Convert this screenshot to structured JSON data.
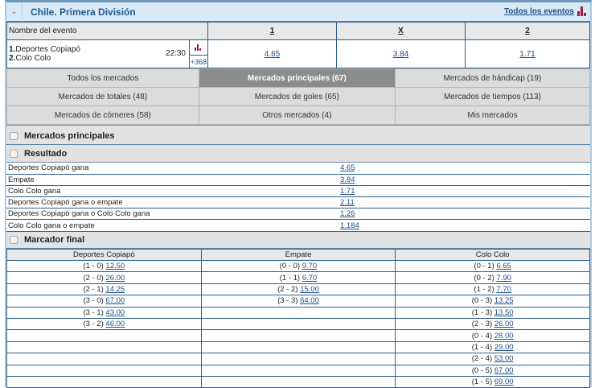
{
  "header": {
    "title": "Chile. Primera División",
    "all_events": "Todos los eventos"
  },
  "columns": {
    "event": "Nombre del evento",
    "c1": "1",
    "cx": "X",
    "c2": "2"
  },
  "event": {
    "team1": "Deportes Copiapó",
    "team2": "Colo Colo",
    "n1": "1.",
    "n2": "2.",
    "time": "22:30",
    "more": "+368",
    "odd1": "4.65",
    "oddx": "3.84",
    "odd2": "1.71"
  },
  "tabs": [
    [
      "Todos los mercados",
      "Mercados principales (67)",
      "Mercados de hándicap (19)"
    ],
    [
      "Mercados de totales (48)",
      "Mercados de goles (65)",
      "Mercados de tiempos (113)"
    ],
    [
      "Mercados de córneres (58)",
      "Otros mercados (4)",
      "Mis mercados"
    ]
  ],
  "active_tab": "Mercados principales (67)",
  "sections": {
    "main": "Mercados principales",
    "result": "Resultado",
    "score": "Marcador final"
  },
  "result": [
    {
      "label": "Deportes Copiapó gana",
      "odd": "4.65"
    },
    {
      "label": "Empate",
      "odd": "3.84"
    },
    {
      "label": "Colo Colo gana",
      "odd": "1.71"
    },
    {
      "label": "Deportes Copiapó gana o empate",
      "odd": "2.11"
    },
    {
      "label": "Deportes Copiapó gana o Colo Colo gana",
      "odd": "1.26"
    },
    {
      "label": "Colo Colo gana o empate",
      "odd": "1.184"
    }
  ],
  "score": {
    "headers": [
      "Deportes Copiapó",
      "Empate",
      "Colo Colo"
    ],
    "home": [
      [
        "(1 - 0)",
        "12.50"
      ],
      [
        "(2 - 0)",
        "26.00"
      ],
      [
        "(2 - 1)",
        "14.25"
      ],
      [
        "(3 - 0)",
        "67.00"
      ],
      [
        "(3 - 1)",
        "43.00"
      ],
      [
        "(3 - 2)",
        "46.00"
      ]
    ],
    "draw": [
      [
        "(0 - 0)",
        "9.70"
      ],
      [
        "(1 - 1)",
        "6.70"
      ],
      [
        "(2 - 2)",
        "15.00"
      ],
      [
        "(3 - 3)",
        "64.00"
      ]
    ],
    "away": [
      [
        "(0 - 1)",
        "6.65"
      ],
      [
        "(0 - 2)",
        "7.90"
      ],
      [
        "(1 - 2)",
        "7.70"
      ],
      [
        "(0 - 3)",
        "13.25"
      ],
      [
        "(1 - 3)",
        "13.50"
      ],
      [
        "(2 - 3)",
        "26.00"
      ],
      [
        "(0 - 4)",
        "28.00"
      ],
      [
        "(1 - 4)",
        "29.00"
      ],
      [
        "(2 - 4)",
        "53.00"
      ],
      [
        "(0 - 5)",
        "67.00"
      ],
      [
        "(1 - 5)",
        "69.00"
      ]
    ]
  },
  "colors": {
    "accent": "#1d4e89",
    "header_bg": "#d9e9f6",
    "stats_icon": "#9b1d4a"
  },
  "icons": [
    "chevron-down-icon",
    "bar-chart-icon",
    "checkbox-icon"
  ]
}
